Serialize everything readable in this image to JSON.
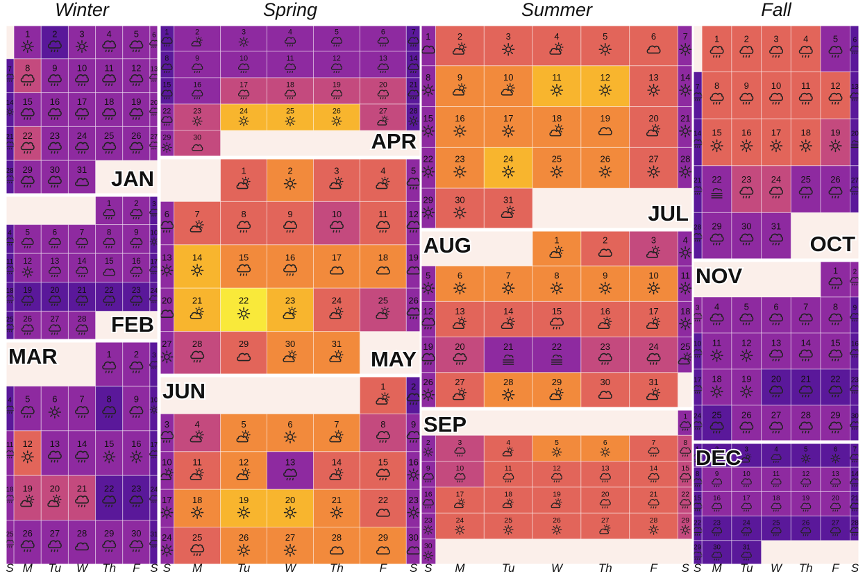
{
  "seasons": [
    "Winter",
    "Spring",
    "Summer",
    "Fall"
  ],
  "weekday_labels": [
    "S",
    "M",
    "Tu",
    "W",
    "Th",
    "F",
    "S"
  ],
  "palette": {
    "cold": "#5a189a",
    "cool": "#8e2aa0",
    "mild": "#c44a7e",
    "warm": "#e2655a",
    "hot": "#f28a3c",
    "very_hot": "#f8b52e",
    "hottest": "#f9e93a",
    "empty": "#fbefea"
  },
  "months": [
    {
      "name": "JAN",
      "start_weekday": 1,
      "days": 31,
      "label_pos": "bottom-right",
      "heat": [
        2,
        1,
        2,
        2,
        2,
        2,
        1,
        3,
        2,
        2,
        2,
        2,
        2,
        1,
        2,
        2,
        2,
        2,
        2,
        2,
        1,
        3,
        2,
        2,
        2,
        2,
        2,
        1,
        2,
        2,
        2
      ],
      "icons": [
        "sun",
        "rain",
        "sun",
        "rain",
        "rain",
        "rain",
        "rain",
        "rain",
        "rain",
        "rain",
        "rain",
        "rain",
        "rain",
        "sun",
        "rain",
        "rain",
        "rain",
        "rain",
        "rain",
        "rain",
        "rain",
        "rain",
        "rain",
        "rain",
        "rain",
        "rain",
        "rain",
        "rain",
        "rain",
        "rain",
        "cloud"
      ]
    },
    {
      "name": "FEB",
      "start_weekday": 4,
      "days": 28,
      "label_pos": "bottom-right",
      "heat": [
        2,
        2,
        1,
        1,
        2,
        2,
        2,
        2,
        2,
        1,
        1,
        2,
        2,
        2,
        2,
        2,
        1,
        1,
        1,
        1,
        1,
        1,
        1,
        1,
        1,
        2,
        2,
        2
      ],
      "icons": [
        "rain",
        "rain",
        "rain",
        "rain",
        "rain",
        "rain",
        "rain",
        "rain",
        "rain",
        "sun",
        "rain",
        "sun",
        "rain",
        "rain",
        "cloud",
        "rain",
        "rain",
        "rain",
        "rain",
        "rain",
        "rain",
        "rain",
        "rain",
        "rain",
        "rain",
        "rain",
        "rain",
        "rain"
      ]
    },
    {
      "name": "MAR",
      "start_weekday": 4,
      "days": 31,
      "label_pos": "top-left",
      "heat": [
        2,
        2,
        1,
        1,
        2,
        2,
        2,
        1,
        2,
        1,
        2,
        4,
        2,
        2,
        2,
        2,
        1,
        2,
        3,
        3,
        3,
        1,
        1,
        1,
        2,
        2,
        2,
        2,
        2,
        2,
        1
      ],
      "icons": [
        "rain",
        "rain",
        "rain",
        "rain",
        "rain",
        "sun",
        "rain",
        "rain",
        "rain",
        "sun",
        "rain",
        "sun",
        "rain",
        "rain",
        "sun",
        "sun",
        "rain",
        "rain",
        "sunny-cloud",
        "sunny-cloud",
        "rain",
        "rain",
        "rain",
        "rain",
        "rain",
        "rain",
        "rain",
        "cloud",
        "rain",
        "rain",
        "rain"
      ]
    },
    {
      "name": "APR",
      "start_weekday": 0,
      "days": 30,
      "label_pos": "bottom-right",
      "heat": [
        1,
        2,
        2,
        2,
        2,
        2,
        1,
        1,
        2,
        2,
        2,
        2,
        2,
        1,
        1,
        2,
        3,
        3,
        3,
        3,
        1,
        2,
        3,
        6,
        6,
        6,
        3,
        1,
        2,
        3
      ],
      "icons": [
        "rain",
        "sunny-cloud",
        "sun",
        "rain",
        "rain",
        "rain",
        "rain",
        "rain",
        "rain",
        "rain",
        "rain",
        "rain",
        "rain",
        "rain",
        "rain",
        "rain",
        "rain",
        "rain",
        "rain",
        "rain",
        "rain",
        "rain",
        "sun",
        "sun",
        "sun",
        "sun",
        "sunny-cloud",
        "sun",
        "sun",
        "cloud"
      ]
    },
    {
      "name": "MAY",
      "start_weekday": 2,
      "days": 31,
      "label_pos": "bottom-right",
      "heat": [
        4,
        5,
        4,
        4,
        2,
        2,
        4,
        4,
        4,
        3,
        4,
        2,
        2,
        6,
        5,
        5,
        5,
        5,
        2,
        2,
        6,
        7,
        6,
        4,
        3,
        2,
        2,
        3,
        4,
        5,
        5
      ],
      "icons": [
        "sunny-cloud",
        "sun",
        "sunny-cloud",
        "sunny-cloud",
        "rain",
        "rain",
        "sunny-cloud",
        "rain",
        "rain",
        "rain",
        "rain",
        "rain",
        "sun",
        "sun",
        "rain",
        "rain",
        "cloud",
        "cloud",
        "cloud",
        "cloud",
        "sunny-cloud",
        "sun",
        "sunny-cloud",
        "sunny-cloud",
        "sunny-cloud",
        "rain",
        "sun",
        "rain",
        "cloud",
        "sunny-cloud",
        "sunny-cloud"
      ]
    },
    {
      "name": "JUN",
      "start_weekday": 5,
      "days": 30,
      "label_pos": "top-left",
      "heat": [
        4,
        1,
        2,
        3,
        5,
        5,
        5,
        3,
        2,
        2,
        4,
        5,
        2,
        4,
        4,
        2,
        2,
        5,
        6,
        6,
        5,
        4,
        2,
        2,
        4,
        5,
        5,
        5,
        5,
        2
      ],
      "icons": [
        "sunny-cloud",
        "rain",
        "rain",
        "sunny-cloud",
        "sunny-cloud",
        "sun",
        "sunny-cloud",
        "rain",
        "rain",
        "sunny-cloud",
        "sunny-cloud",
        "sunny-cloud",
        "rain",
        "sunny-cloud",
        "rain",
        "sun",
        "sun",
        "sun",
        "sun",
        "sun",
        "sun",
        "cloud",
        "sun",
        "sun",
        "rain",
        "sun",
        "sun",
        "cloud",
        "cloud",
        "cloud"
      ]
    },
    {
      "name": "JUL",
      "start_weekday": 0,
      "days": 31,
      "label_pos": "bottom-right",
      "heat": [
        2,
        4,
        4,
        4,
        4,
        4,
        2,
        2,
        5,
        5,
        6,
        6,
        4,
        2,
        2,
        5,
        5,
        5,
        5,
        4,
        2,
        2,
        5,
        6,
        5,
        5,
        4,
        2,
        2,
        4,
        4
      ],
      "icons": [
        "cloud",
        "sunny-cloud",
        "sun",
        "sunny-cloud",
        "sun",
        "cloud",
        "sun",
        "sun",
        "sunny-cloud",
        "sunny-cloud",
        "sun",
        "sun",
        "sun",
        "sun",
        "sun",
        "sun",
        "sun",
        "sunny-cloud",
        "cloud",
        "sunny-cloud",
        "sun",
        "sun",
        "sun",
        "sun",
        "sun",
        "sun",
        "sun",
        "sun",
        "sun",
        "sun",
        "sunny-cloud"
      ]
    },
    {
      "name": "AUG",
      "start_weekday": 3,
      "days": 31,
      "label_pos": "top-left",
      "heat": [
        5,
        4,
        3,
        2,
        2,
        5,
        5,
        5,
        5,
        5,
        2,
        2,
        4,
        4,
        4,
        4,
        4,
        2,
        2,
        3,
        2,
        2,
        3,
        3,
        2,
        2,
        4,
        5,
        5,
        4,
        4
      ],
      "icons": [
        "sunny-cloud",
        "cloud",
        "sunny-cloud",
        "sun",
        "sun",
        "sun",
        "sun",
        "sun",
        "sun",
        "sun",
        "sun",
        "rain",
        "sunny-cloud",
        "sunny-cloud",
        "rain",
        "sunny-cloud",
        "sunny-cloud",
        "sun",
        "rain",
        "rain",
        "fog",
        "fog",
        "rain",
        "rain",
        "sunny-cloud",
        "sun",
        "sunny-cloud",
        "sun",
        "sunny-cloud",
        "cloud",
        "sunny-cloud"
      ]
    },
    {
      "name": "SEP",
      "start_weekday": 6,
      "days": 30,
      "label_pos": "top-left",
      "heat": [
        2,
        2,
        3,
        4,
        5,
        5,
        4,
        3,
        2,
        3,
        4,
        4,
        4,
        4,
        3,
        2,
        4,
        4,
        4,
        4,
        4,
        3,
        2,
        4,
        4,
        4,
        4,
        4,
        3,
        2
      ],
      "icons": [
        "rain",
        "sun",
        "rain",
        "sunny-cloud",
        "sun",
        "sun",
        "rain",
        "rain",
        "rain",
        "rain",
        "rain",
        "rain",
        "rain",
        "rain",
        "rain",
        "rain",
        "sunny-cloud",
        "sunny-cloud",
        "sunny-cloud",
        "rain",
        "rain",
        "rain",
        "sun",
        "sun",
        "sun",
        "sun",
        "sunny-cloud",
        "sun",
        "sun",
        "sun"
      ]
    },
    {
      "name": "OCT",
      "start_weekday": 1,
      "days": 31,
      "label_pos": "bottom-right",
      "heat": [
        4,
        4,
        4,
        4,
        2,
        1,
        1,
        4,
        4,
        4,
        4,
        4,
        1,
        1,
        4,
        4,
        4,
        4,
        3,
        1,
        1,
        2,
        3,
        3,
        2,
        2,
        1,
        1,
        2,
        2,
        2
      ],
      "icons": [
        "rain",
        "rain",
        "rain",
        "rain",
        "rain",
        "rain",
        "rain",
        "rain",
        "rain",
        "rain",
        "rain",
        "rain",
        "rain",
        "rain",
        "sun",
        "sun",
        "sun",
        "sun",
        "sun",
        "fog",
        "rain",
        "fog",
        "rain",
        "rain",
        "rain",
        "rain",
        "rain",
        "rain",
        "rain",
        "rain",
        "rain"
      ]
    },
    {
      "name": "NOV",
      "start_weekday": 5,
      "days": 30,
      "label_pos": "top-left",
      "heat": [
        2,
        2,
        2,
        2,
        2,
        2,
        2,
        2,
        1,
        1,
        2,
        2,
        2,
        2,
        2,
        1,
        1,
        2,
        2,
        1,
        1,
        1,
        1,
        1,
        1,
        2,
        2,
        2,
        2,
        1
      ],
      "icons": [
        "rain",
        "rain",
        "rain",
        "rain",
        "rain",
        "rain",
        "rain",
        "rain",
        "rain",
        "rain",
        "sun",
        "sun",
        "rain",
        "rain",
        "rain",
        "rain",
        "rain",
        "sun",
        "sun",
        "rain",
        "rain",
        "rain",
        "rain",
        "rain",
        "rain",
        "rain",
        "rain",
        "rain",
        "rain",
        "rain"
      ]
    },
    {
      "name": "DEC",
      "start_weekday": 0,
      "days": 31,
      "label_pos": "top-left",
      "heat": [
        1,
        1,
        1,
        1,
        1,
        1,
        1,
        1,
        2,
        2,
        2,
        2,
        2,
        1,
        1,
        2,
        2,
        2,
        2,
        2,
        1,
        1,
        1,
        1,
        1,
        1,
        1,
        1,
        1,
        1,
        1
      ],
      "icons": [
        "rain",
        "rain",
        "sunny-cloud",
        "rain",
        "sun",
        "sun",
        "rain",
        "rain",
        "rain",
        "rain",
        "rain",
        "rain",
        "rain",
        "rain",
        "rain",
        "rain",
        "rain",
        "rain",
        "rain",
        "rain",
        "rain",
        "rain",
        "rain",
        "rain",
        "rain",
        "rain",
        "rain",
        "rain",
        "rain",
        "rain",
        "rain"
      ]
    }
  ]
}
